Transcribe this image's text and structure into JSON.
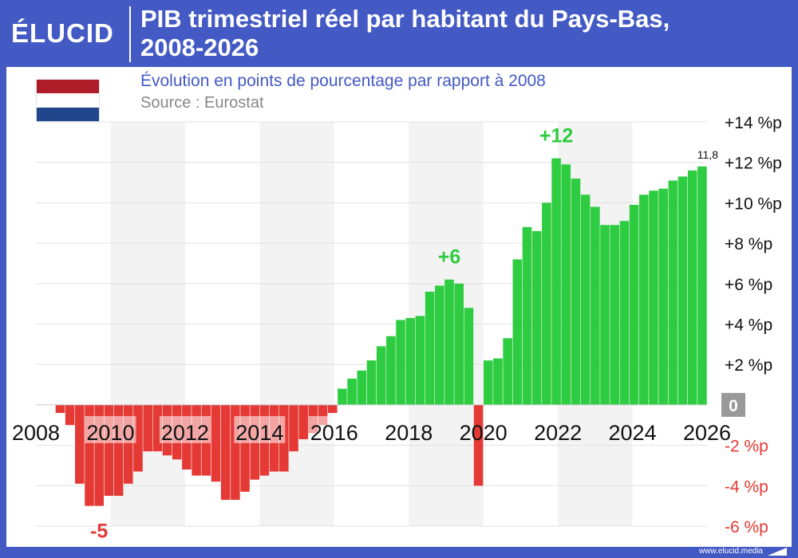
{
  "header": {
    "logo": "ÉLUCID",
    "title_line1": "PIB trimestriel réel par habitant du Pays-Bas,",
    "title_line2": "2008-2026"
  },
  "subtitle": "Évolution en points de pourcentage par rapport à 2008",
  "source": "Source : Eurostat",
  "footer": {
    "url": "www.elucid.media"
  },
  "colors": {
    "brand": "#4359c4",
    "positive": "#2ecc40",
    "negative": "#e53935",
    "flag_red": "#ae1c28",
    "flag_white": "#ffffff",
    "flag_blue": "#21468b"
  },
  "icons": {
    "flag": "netherlands-flag-icon",
    "footer": "elucid-logo-icon"
  },
  "chart_data": {
    "type": "bar",
    "title": "PIB trimestriel réel par habitant du Pays-Bas, 2008-2026",
    "subtitle": "Évolution en points de pourcentage par rapport à 2008",
    "x_start": "2008",
    "x_end": "2026",
    "x_ticks": [
      "2008",
      "2010",
      "2012",
      "2014",
      "2016",
      "2018",
      "2020",
      "2022",
      "2024",
      "2026"
    ],
    "y_ticks": [
      "-6 %p",
      "-4 %p",
      "-2 %p",
      "0",
      "+2 %p",
      "+4 %p",
      "+6 %p",
      "+8 %p",
      "+10 %p",
      "+12 %p",
      "+14 %p"
    ],
    "ylim": [
      -6,
      14
    ],
    "grid": true,
    "values": [
      0.0,
      0.0,
      -0.4,
      -1.0,
      -3.9,
      -5.0,
      -5.0,
      -4.5,
      -4.5,
      -3.9,
      -3.3,
      -2.3,
      -2.3,
      -2.5,
      -2.7,
      -3.2,
      -3.5,
      -3.5,
      -3.8,
      -4.7,
      -4.7,
      -4.3,
      -3.7,
      -3.5,
      -3.3,
      -3.3,
      -2.3,
      -1.7,
      -1.4,
      -1.0,
      -0.4,
      0.8,
      1.3,
      1.7,
      2.2,
      2.9,
      3.4,
      4.2,
      4.3,
      4.4,
      5.6,
      5.9,
      6.2,
      6.0,
      4.8,
      -4.0,
      2.2,
      2.3,
      3.3,
      7.2,
      8.8,
      8.6,
      10.0,
      12.2,
      11.9,
      11.2,
      10.4,
      9.8,
      8.9,
      8.9,
      9.1,
      9.9,
      10.4,
      10.6,
      10.7,
      11.1,
      11.3,
      11.6,
      11.8
    ],
    "annotations": [
      {
        "text": "-5",
        "index": 6,
        "value": -5.0
      },
      {
        "text": "+6",
        "index": 42,
        "value": 6.2
      },
      {
        "text": "+12",
        "index": 53,
        "value": 12.2
      },
      {
        "text": "11,8",
        "index": 68,
        "value": 11.8
      }
    ]
  }
}
